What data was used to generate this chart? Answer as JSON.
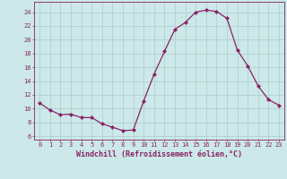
{
  "x": [
    0,
    1,
    2,
    3,
    4,
    5,
    6,
    7,
    8,
    9,
    10,
    11,
    12,
    13,
    14,
    15,
    16,
    17,
    18,
    19,
    20,
    21,
    22,
    23
  ],
  "y": [
    10.8,
    9.8,
    9.1,
    9.2,
    8.7,
    8.7,
    7.8,
    7.3,
    6.8,
    6.9,
    11.1,
    15.0,
    18.3,
    21.5,
    22.5,
    24.0,
    24.3,
    24.1,
    23.1,
    18.5,
    16.2,
    13.3,
    11.3,
    10.5
  ],
  "line_color": "#882266",
  "marker": "D",
  "markersize": 2.0,
  "linewidth": 0.9,
  "bg_color": "#cce8e8",
  "grid_color": "#aacccc",
  "xlabel": "Windchill (Refroidissement éolien,°C)",
  "xlabel_color": "#882266",
  "ylabel_ticks": [
    6,
    8,
    10,
    12,
    14,
    16,
    18,
    20,
    22,
    24
  ],
  "xlim": [
    -0.5,
    23.5
  ],
  "ylim": [
    5.5,
    25.5
  ],
  "tick_color": "#882266",
  "axis_color": "#882266",
  "xlabel_fontsize": 6.0,
  "tick_fontsize": 5.0
}
